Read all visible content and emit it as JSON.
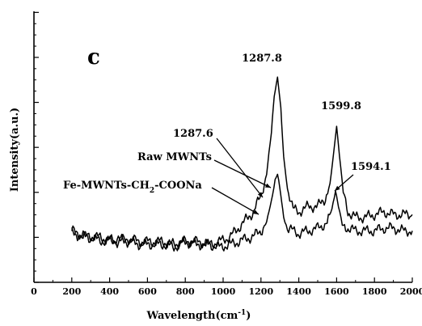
{
  "chart_data": {
    "type": "line",
    "panel_label": "c",
    "xlabel": "Wavelength(cm",
    "xlabel_sup": "-1",
    "xlabel_tail": ")",
    "ylabel": "Intensity(a.u.)",
    "xlim": [
      0,
      2000
    ],
    "ylim": [
      0,
      100
    ],
    "x_ticks": [
      0,
      200,
      400,
      600,
      800,
      1000,
      1200,
      1400,
      1600,
      1800,
      2000
    ],
    "x_tick_labels": [
      "0",
      "200",
      "400",
      "600",
      "800",
      "1000",
      "1200",
      "1400",
      "1600",
      "1800",
      "2000"
    ],
    "y_major_ticks": [
      0,
      16.6,
      33.2,
      49.8,
      66.4,
      83.0,
      99.6
    ],
    "grid": false,
    "series": [
      {
        "name": "Raw MWNTs",
        "x": [
          200,
          260,
          320,
          380,
          440,
          500,
          560,
          620,
          680,
          740,
          800,
          860,
          920,
          980,
          1040,
          1080,
          1120,
          1160,
          1200,
          1230,
          1255,
          1270,
          1287.8,
          1305,
          1320,
          1340,
          1370,
          1400,
          1450,
          1500,
          1540,
          1565,
          1585,
          1599.8,
          1615,
          1635,
          1660,
          1700,
          1750,
          1800,
          1850,
          1900,
          1950,
          2000
        ],
        "y": [
          19,
          17,
          17,
          16,
          15,
          16,
          15,
          15,
          15,
          14,
          15,
          15,
          14,
          15,
          17,
          20,
          23,
          26,
          32,
          40,
          55,
          69,
          76,
          64,
          46,
          35,
          27,
          26,
          28,
          28,
          31,
          36,
          48,
          58,
          47,
          33,
          26,
          24,
          24,
          25,
          26,
          25,
          25,
          25
        ]
      },
      {
        "name": "Fe-MWNTs-CH2-COONa",
        "x": [
          200,
          260,
          320,
          380,
          440,
          500,
          560,
          620,
          680,
          740,
          800,
          860,
          920,
          980,
          1040,
          1080,
          1120,
          1160,
          1200,
          1230,
          1255,
          1275,
          1287.6,
          1305,
          1320,
          1340,
          1370,
          1400,
          1450,
          1500,
          1550,
          1575,
          1594.1,
          1610,
          1630,
          1660,
          1700,
          1750,
          1800,
          1850,
          1900,
          1950,
          2000
        ],
        "y": [
          18,
          17,
          16,
          15,
          16,
          15,
          14,
          14,
          14,
          13,
          15,
          14,
          14,
          13,
          14,
          15,
          16,
          17,
          19,
          22,
          30,
          38,
          40,
          32,
          24,
          20,
          19,
          18,
          19,
          20,
          22,
          27,
          34,
          28,
          21,
          20,
          19,
          19,
          19,
          20,
          20,
          19,
          19
        ]
      }
    ],
    "annotations": {
      "peak_top_left": "1287.8",
      "peak_top_right": "1599.8",
      "peak_lower_left": "1287.6",
      "peak_lower_right": "1594.1",
      "series_raw": "Raw MWNTs",
      "series_fe_prefix": "Fe-MWNTs-CH",
      "series_fe_sub": "2",
      "series_fe_suffix": "-COONa"
    }
  }
}
